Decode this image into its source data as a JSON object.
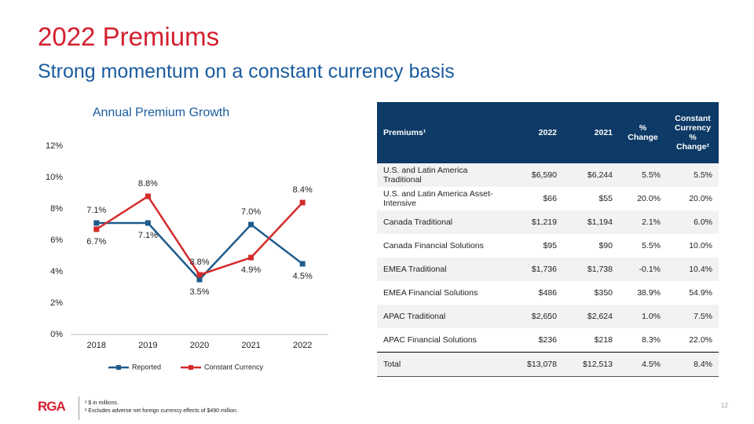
{
  "header": {
    "title": "2022 Premiums",
    "subtitle": "Strong momentum on a constant currency basis"
  },
  "chart_data": {
    "type": "line",
    "title": "Annual Premium Growth",
    "categories": [
      "2018",
      "2019",
      "2020",
      "2021",
      "2022"
    ],
    "series": [
      {
        "name": "Reported",
        "color": "#1f5c8c",
        "values": [
          7.1,
          7.1,
          3.5,
          7.0,
          4.5
        ],
        "value_labels": [
          "7.1%",
          "7.1%",
          "3.5%",
          "7.0%",
          "4.5%"
        ]
      },
      {
        "name": "Constant Currency",
        "color": "#d42b2b",
        "values": [
          6.7,
          8.8,
          3.8,
          4.9,
          8.4
        ],
        "value_labels": [
          "6.7%",
          "8.8%",
          "3.8%",
          "4.9%",
          "8.4%"
        ]
      }
    ],
    "ylim": [
      0,
      12
    ],
    "yticks": [
      {
        "value": 0,
        "label": "0%"
      },
      {
        "value": 2,
        "label": "2%"
      },
      {
        "value": 4,
        "label": "4%"
      },
      {
        "value": 6,
        "label": "6%"
      },
      {
        "value": 8,
        "label": "8%"
      },
      {
        "value": 10,
        "label": "10%"
      },
      {
        "value": 12,
        "label": "12%"
      }
    ],
    "grid": false,
    "legend": "bottom"
  },
  "table": {
    "header": [
      "Premiums¹",
      "2022",
      "2021",
      "% Change",
      "Constant Currency % Change²"
    ],
    "rows": [
      [
        "U.S. and Latin America Traditional",
        "$6,590",
        "$6,244",
        "5.5%",
        "5.5%"
      ],
      [
        "U.S. and Latin America Asset-Intensive",
        "$66",
        "$55",
        "20.0%",
        "20.0%"
      ],
      [
        "Canada Traditional",
        "$1,219",
        "$1,194",
        "2.1%",
        "6.0%"
      ],
      [
        "Canada Financial Solutions",
        "$95",
        "$90",
        "5.5%",
        "10.0%"
      ],
      [
        "EMEA Traditional",
        "$1,736",
        "$1,738",
        "-0.1%",
        "10.4%"
      ],
      [
        "EMEA Financial Solutions",
        "$486",
        "$350",
        "38.9%",
        "54.9%"
      ],
      [
        "APAC Traditional",
        "$2,650",
        "$2,624",
        "1.0%",
        "7.5%"
      ],
      [
        "APAC Financial Solutions",
        "$236",
        "$218",
        "8.3%",
        "22.0%"
      ],
      [
        "Total",
        "$13,078",
        "$12,513",
        "4.5%",
        "8.4%"
      ]
    ]
  },
  "footer": {
    "logo": "RGA",
    "notes": [
      "¹ $ in millions.",
      "² Excludes adverse net foreign currency effects of $490 million."
    ],
    "page": "12"
  }
}
